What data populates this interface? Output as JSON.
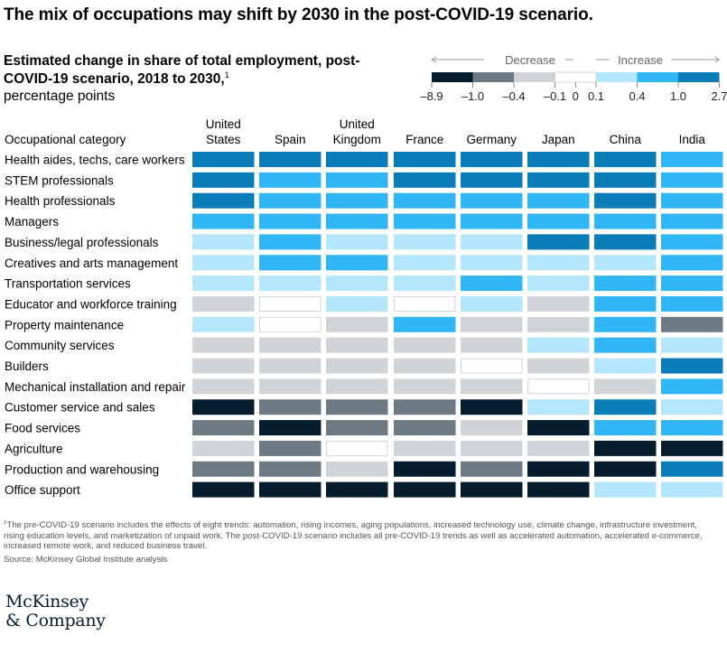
{
  "title": "The mix of occupations may shift by 2030 in the post-COVID-19 scenario.",
  "subtitle": "Estimated change in share of total employment, post-COVID-19 scenario, 2018 to 2030,",
  "footnote_marker": "1",
  "unit": "percentage points",
  "footnote": "The pre-COVID-19 scenario includes the effects of eight trends: automation, rising incomes, aging populations, increased technology use, climate change, infrastructure investment, rising education levels, and marketization of unpaid work. The post-COVID-19 scenario includes all pre-COVID-19 trends as well as accelerated automation, accelerated e-commerce, increased remote work, and reduced business travel.",
  "source": "Source: McKinsey Global Institute analysis",
  "logo": {
    "line1": "McKinsey",
    "line2": "& Company"
  },
  "colors": {
    "b1": "#051c2c",
    "b2": "#6d7a84",
    "b3": "#d0d4d7",
    "b4": "#ffffff",
    "b5": "#b3e5fb",
    "b6": "#31b6f5",
    "b7": "#0a7cb8"
  },
  "chart_data": {
    "type": "heatmap",
    "row_header": "Occupational category",
    "legend": {
      "decrease_label": "Decrease",
      "increase_label": "Increase",
      "ticks": [
        "–8.9",
        "–1.0",
        "–0.4",
        "–0.1",
        "0",
        "0.1",
        "0.4",
        "1.0",
        "2.7"
      ],
      "bins": [
        {
          "code": "b1",
          "range": [
            -8.9,
            -1.0
          ]
        },
        {
          "code": "b2",
          "range": [
            -1.0,
            -0.4
          ]
        },
        {
          "code": "b3",
          "range": [
            -0.4,
            -0.1
          ]
        },
        {
          "code": "b4",
          "range": [
            -0.1,
            0.1
          ]
        },
        {
          "code": "b5",
          "range": [
            0.1,
            0.4
          ]
        },
        {
          "code": "b6",
          "range": [
            0.4,
            1.0
          ]
        },
        {
          "code": "b7",
          "range": [
            1.0,
            2.7
          ]
        }
      ]
    },
    "columns": [
      [
        "United",
        "States"
      ],
      [
        "Spain"
      ],
      [
        "United",
        "Kingdom"
      ],
      [
        "France"
      ],
      [
        "Germany"
      ],
      [
        "Japan"
      ],
      [
        "China"
      ],
      [
        "India"
      ]
    ],
    "rows": [
      {
        "label": "Health aides, techs, care workers",
        "bins": [
          "b7",
          "b7",
          "b7",
          "b7",
          "b7",
          "b7",
          "b7",
          "b6"
        ]
      },
      {
        "label": "STEM professionals",
        "bins": [
          "b7",
          "b6",
          "b6",
          "b7",
          "b7",
          "b7",
          "b7",
          "b6"
        ]
      },
      {
        "label": "Health professionals",
        "bins": [
          "b7",
          "b6",
          "b6",
          "b6",
          "b6",
          "b6",
          "b7",
          "b6"
        ]
      },
      {
        "label": "Managers",
        "bins": [
          "b6",
          "b6",
          "b6",
          "b6",
          "b6",
          "b6",
          "b6",
          "b6"
        ]
      },
      {
        "label": "Business/legal professionals",
        "bins": [
          "b5",
          "b6",
          "b5",
          "b5",
          "b5",
          "b7",
          "b7",
          "b6"
        ]
      },
      {
        "label": "Creatives and arts management",
        "bins": [
          "b5",
          "b6",
          "b6",
          "b5",
          "b5",
          "b5",
          "b5",
          "b6"
        ]
      },
      {
        "label": "Transportation services",
        "bins": [
          "b5",
          "b5",
          "b5",
          "b5",
          "b6",
          "b5",
          "b6",
          "b6"
        ]
      },
      {
        "label": "Educator and workforce training",
        "bins": [
          "b3",
          "b4",
          "b5",
          "b4",
          "b5",
          "b3",
          "b6",
          "b6"
        ]
      },
      {
        "label": "Property maintenance",
        "bins": [
          "b5",
          "b4",
          "b3",
          "b6",
          "b3",
          "b3",
          "b6",
          "b2"
        ]
      },
      {
        "label": "Community services",
        "bins": [
          "b3",
          "b3",
          "b3",
          "b3",
          "b3",
          "b5",
          "b6",
          "b5"
        ]
      },
      {
        "label": "Builders",
        "bins": [
          "b3",
          "b3",
          "b3",
          "b3",
          "b4",
          "b3",
          "b5",
          "b7"
        ]
      },
      {
        "label": "Mechanical installation and repair",
        "bins": [
          "b3",
          "b3",
          "b3",
          "b3",
          "b3",
          "b4",
          "b3",
          "b6"
        ]
      },
      {
        "label": "Customer service and sales",
        "bins": [
          "b1",
          "b2",
          "b2",
          "b2",
          "b1",
          "b5",
          "b7",
          "b5"
        ]
      },
      {
        "label": "Food services",
        "bins": [
          "b2",
          "b1",
          "b2",
          "b2",
          "b3",
          "b1",
          "b6",
          "b6"
        ]
      },
      {
        "label": "Agriculture",
        "bins": [
          "b3",
          "b2",
          "b4",
          "b3",
          "b3",
          "b3",
          "b1",
          "b1"
        ]
      },
      {
        "label": "Production and warehousing",
        "bins": [
          "b2",
          "b2",
          "b3",
          "b1",
          "b2",
          "b1",
          "b1",
          "b7"
        ]
      },
      {
        "label": "Office support",
        "bins": [
          "b1",
          "b1",
          "b1",
          "b1",
          "b1",
          "b1",
          "b5",
          "b5"
        ]
      }
    ]
  }
}
